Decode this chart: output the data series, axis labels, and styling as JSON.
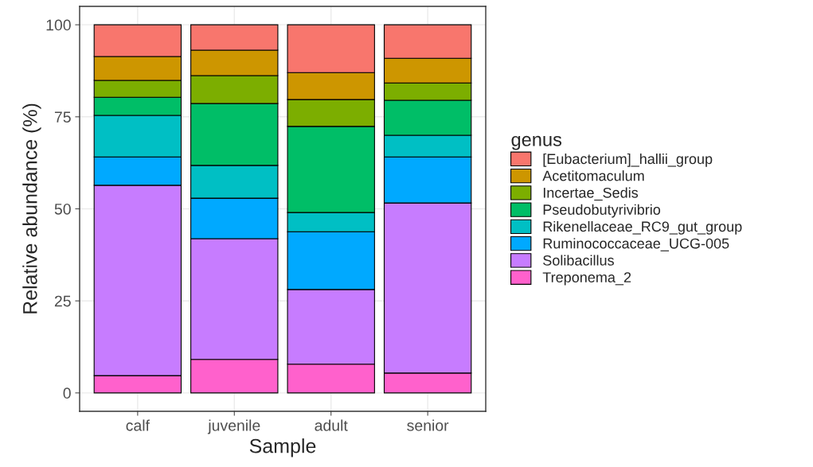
{
  "chart_data": {
    "type": "bar",
    "stacked": true,
    "xlabel": "Sample",
    "ylabel": "Relative abundance (%)",
    "legend_title": "genus",
    "legend": "right",
    "grid": true,
    "categories": [
      "calf",
      "juvenile",
      "adult",
      "senior"
    ],
    "ylim": [
      -5,
      105
    ],
    "yticks": [
      0,
      25,
      50,
      75,
      100
    ],
    "series": [
      {
        "name": "Treponema_2",
        "color": "#ff61cc",
        "values": [
          4.7,
          9.1,
          7.8,
          5.4
        ]
      },
      {
        "name": "Solibacillus",
        "color": "#c77cff",
        "values": [
          51.7,
          32.8,
          20.3,
          46.2
        ]
      },
      {
        "name": "Ruminococcaceae_UCG-005",
        "color": "#00a9ff",
        "values": [
          7.7,
          11.0,
          15.7,
          12.5
        ]
      },
      {
        "name": "Rikenellaceae_RC9_gut_group",
        "color": "#00bfc4",
        "values": [
          11.3,
          8.9,
          5.2,
          5.9
        ]
      },
      {
        "name": "Pseudobutyrivibrio",
        "color": "#00be67",
        "values": [
          4.9,
          16.8,
          23.4,
          9.5
        ]
      },
      {
        "name": "Incertae_Sedis",
        "color": "#7cae00",
        "values": [
          4.6,
          7.6,
          7.3,
          4.7
        ]
      },
      {
        "name": "Acetitomaculum",
        "color": "#cd9600",
        "values": [
          6.5,
          6.9,
          7.3,
          6.7
        ]
      },
      {
        "name": "[Eubacterium]_hallii_group",
        "color": "#f8766d",
        "values": [
          8.6,
          6.9,
          13.0,
          9.1
        ]
      }
    ]
  }
}
